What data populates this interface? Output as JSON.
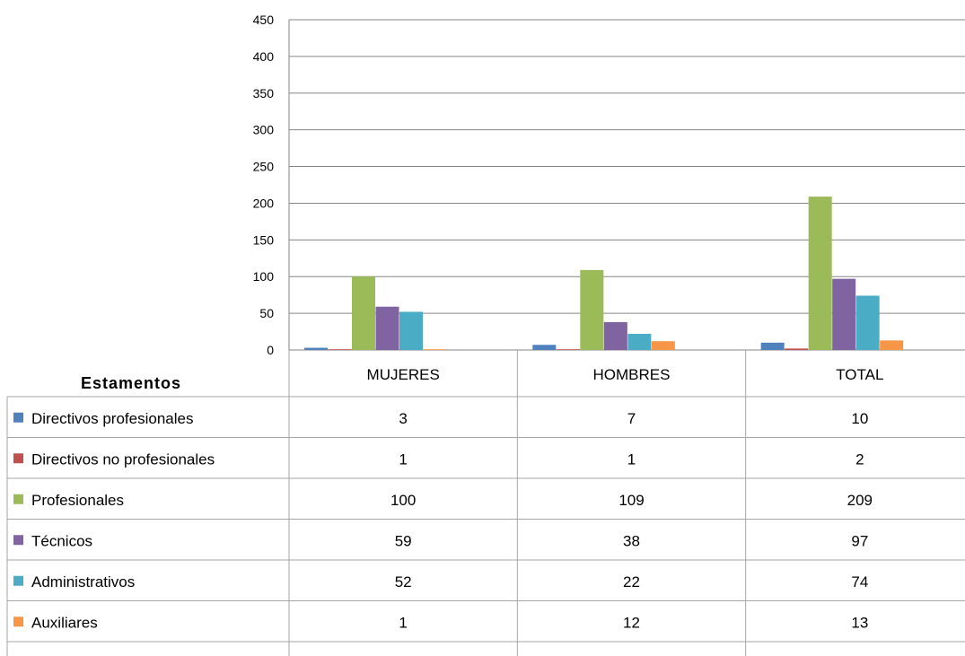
{
  "chart_data": {
    "type": "bar",
    "title": "",
    "table_header": "Estamentos",
    "categories": [
      "MUJERES",
      "HOMBRES",
      "TOTAL"
    ],
    "ylim": [
      0,
      450
    ],
    "yticks": [
      0,
      50,
      100,
      150,
      200,
      250,
      300,
      350,
      400,
      450
    ],
    "grid": true,
    "legend": "data-table",
    "series": [
      {
        "name": "Directivos profesionales",
        "color": "#4F81BD",
        "values": [
          3,
          7,
          10
        ]
      },
      {
        "name": "Directivos no profesionales",
        "color": "#C0504D",
        "values": [
          1,
          1,
          2
        ]
      },
      {
        "name": "Profesionales",
        "color": "#9BBB59",
        "values": [
          100,
          109,
          209
        ]
      },
      {
        "name": "Técnicos",
        "color": "#8064A2",
        "values": [
          59,
          38,
          97
        ]
      },
      {
        "name": "Administrativos",
        "color": "#4BACC6",
        "values": [
          52,
          22,
          74
        ]
      },
      {
        "name": "Auxiliares",
        "color": "#F79646",
        "values": [
          1,
          12,
          13
        ]
      }
    ]
  }
}
